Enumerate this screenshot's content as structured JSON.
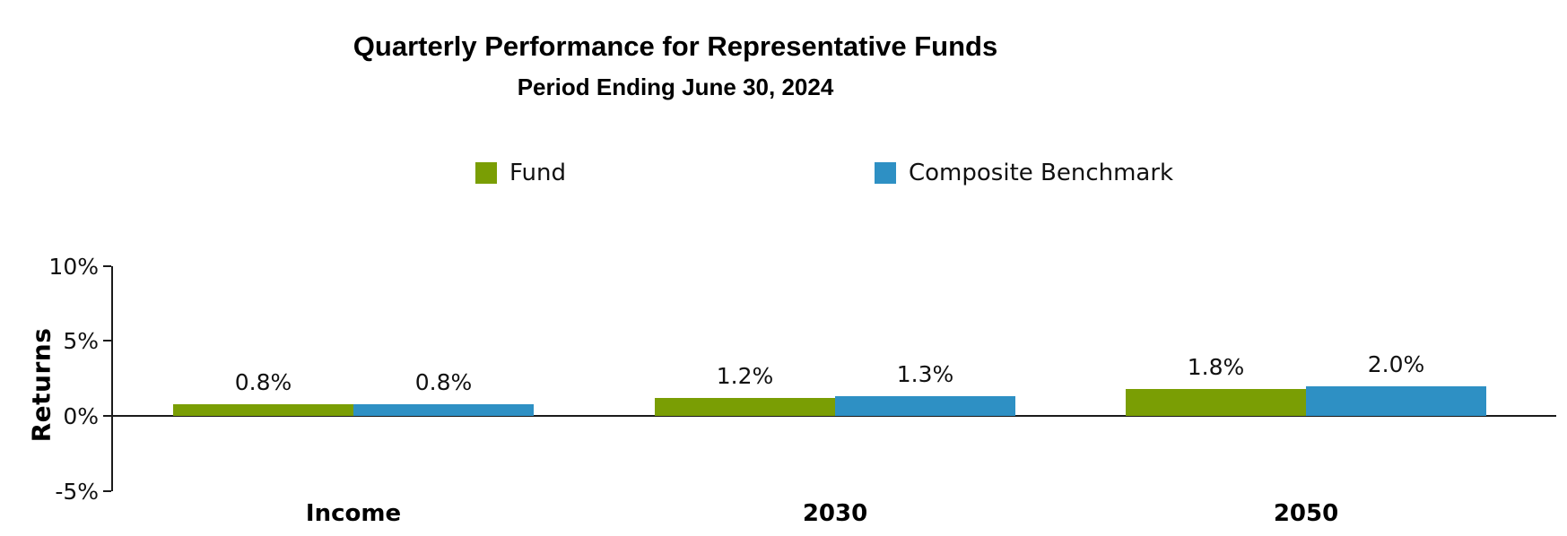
{
  "title": "Quarterly Performance for Representative Funds",
  "subtitle": "Period Ending June 30, 2024",
  "legend": [
    {
      "label": "Fund",
      "color": "#7A9E04"
    },
    {
      "label": "Composite Benchmark",
      "color": "#2E90C4"
    }
  ],
  "chart_data": {
    "type": "bar",
    "title": "Quarterly Performance for Representative Funds",
    "subtitle": "Period Ending June 30, 2024",
    "categories": [
      "Income",
      "2030",
      "2050"
    ],
    "series": [
      {
        "name": "Fund",
        "color": "#7A9E04",
        "values": [
          0.8,
          1.2,
          1.8
        ]
      },
      {
        "name": "Composite Benchmark",
        "color": "#2E90C4",
        "values": [
          0.8,
          1.3,
          2.0
        ]
      }
    ],
    "data_labels": [
      [
        "0.8%",
        "0.8%"
      ],
      [
        "1.2%",
        "1.3%"
      ],
      [
        "1.8%",
        "2.0%"
      ]
    ],
    "xlabel": "",
    "ylabel": "Returns",
    "y_ticks": [
      "10%",
      "5%",
      "0%",
      "-5%"
    ],
    "y_tick_values": [
      10,
      5,
      0,
      -5
    ],
    "ylim": [
      -5,
      10
    ],
    "grid": false,
    "legend_position": "top-center"
  }
}
